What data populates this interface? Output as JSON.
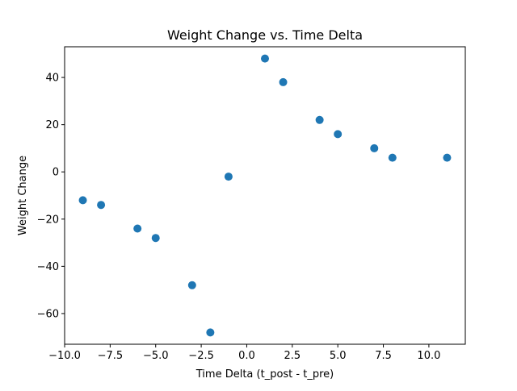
{
  "chart_data": {
    "type": "scatter",
    "title": "Weight Change vs. Time Delta",
    "xlabel": "Time Delta (t_post - t_pre)",
    "ylabel": "Weight Change",
    "xlim": [
      -10.0,
      12.0
    ],
    "ylim": [
      -73.0,
      53.0
    ],
    "xticks": [
      -10.0,
      -7.5,
      -5.0,
      -2.5,
      0.0,
      2.5,
      5.0,
      7.5,
      10.0
    ],
    "xtick_labels": [
      "−10.0",
      "−7.5",
      "−5.0",
      "−2.5",
      "0.0",
      "2.5",
      "5.0",
      "7.5",
      "10.0"
    ],
    "yticks": [
      -60,
      -40,
      -20,
      0,
      20,
      40
    ],
    "ytick_labels": [
      "−60",
      "−40",
      "−20",
      "0",
      "20",
      "40"
    ],
    "grid": false,
    "color": "#1f77b4",
    "points": [
      {
        "x": -9,
        "y": -12
      },
      {
        "x": -8,
        "y": -14
      },
      {
        "x": -6,
        "y": -24
      },
      {
        "x": -5,
        "y": -28
      },
      {
        "x": -3,
        "y": -48
      },
      {
        "x": -2,
        "y": -68
      },
      {
        "x": -1,
        "y": -2
      },
      {
        "x": 1,
        "y": 48
      },
      {
        "x": 2,
        "y": 38
      },
      {
        "x": 4,
        "y": 22
      },
      {
        "x": 5,
        "y": 16
      },
      {
        "x": 7,
        "y": 10
      },
      {
        "x": 8,
        "y": 6
      },
      {
        "x": 11,
        "y": 6
      }
    ]
  }
}
